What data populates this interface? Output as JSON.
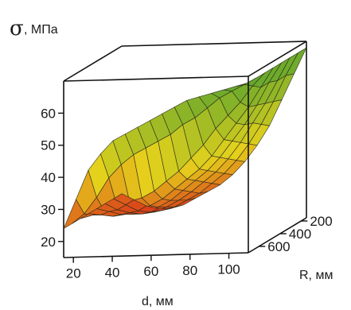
{
  "chart_data": {
    "type": "surface",
    "zlabel": {
      "symbol": "σ",
      "unit": ", МПа"
    },
    "xlabel": "d, мм",
    "ylabel": "R, мм",
    "x_ticks": [
      20,
      40,
      60,
      80,
      100
    ],
    "y_ticks": [
      200,
      400,
      600
    ],
    "z_ticks": [
      20,
      30,
      40,
      50,
      60
    ],
    "zlim": [
      15,
      70
    ],
    "grid": [
      [
        24,
        22,
        20,
        19,
        19,
        20,
        22,
        24,
        26,
        29,
        33,
        38,
        44,
        52,
        60,
        68
      ],
      [
        24,
        22,
        20,
        19.5,
        20,
        21,
        23,
        25,
        28,
        31,
        35,
        40,
        46,
        53,
        61,
        68
      ],
      [
        24,
        22,
        21,
        20.5,
        21,
        22.5,
        24.5,
        27,
        30,
        33,
        37,
        42,
        48,
        54,
        61,
        68
      ],
      [
        24,
        23,
        22,
        22,
        22.5,
        24,
        26,
        29,
        32,
        35,
        39,
        44,
        49,
        55,
        62,
        68
      ],
      [
        24,
        23.5,
        23,
        23.5,
        24.5,
        26,
        28,
        31,
        34,
        37,
        41,
        46,
        51,
        56,
        62,
        68
      ],
      [
        24,
        25,
        26,
        27.5,
        29,
        30,
        32,
        35,
        38,
        42,
        46,
        51,
        55,
        59,
        64,
        68
      ],
      [
        24,
        27,
        32,
        38,
        42,
        45,
        47,
        49,
        51,
        54,
        56,
        59,
        62,
        64,
        66,
        68
      ],
      [
        24,
        33,
        42,
        47,
        51,
        53,
        55,
        57,
        59,
        61,
        63,
        64,
        65,
        66,
        67,
        68
      ]
    ],
    "colors": {
      "low": "#d9341a",
      "mid": "#e6d21c",
      "high": "#5fa62e"
    }
  }
}
